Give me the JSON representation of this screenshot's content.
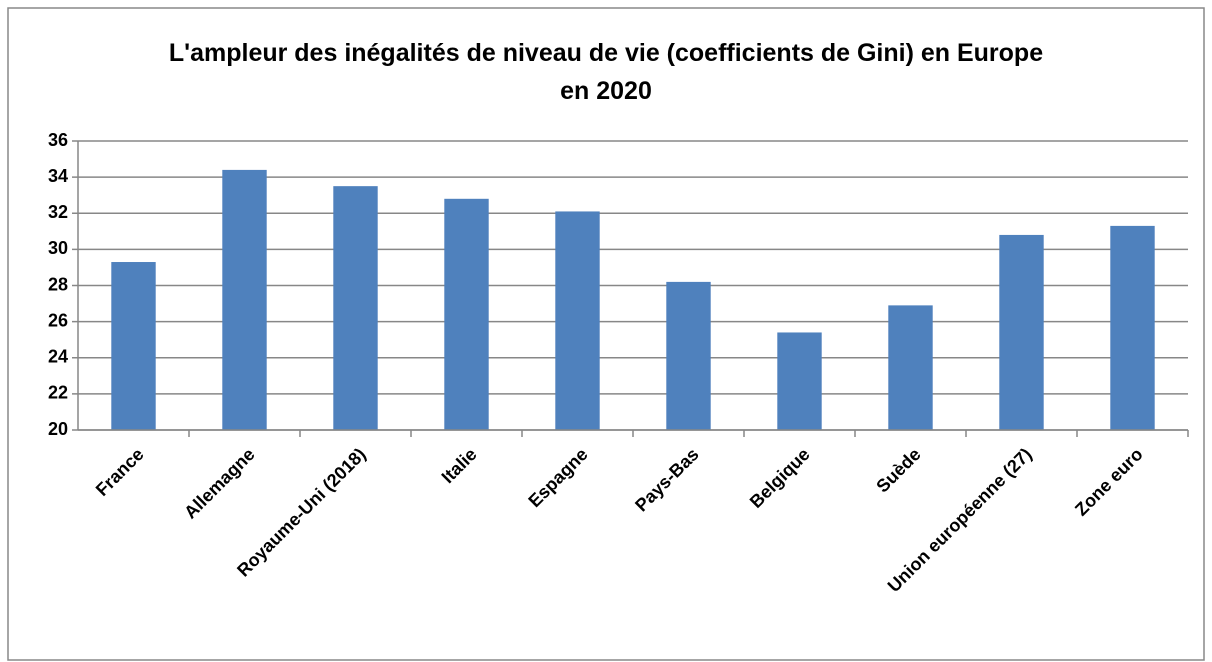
{
  "chart_data": {
    "type": "bar",
    "title": "L'ampleur des inégalités de niveau de vie (coefficients de Gini) en Europe en 2020",
    "categories": [
      "France",
      "Allemagne",
      "Royaume-Uni (2018)",
      "Italie",
      "Espagne",
      "Pays-Bas",
      "Belgique",
      "Suède",
      "Union européenne (27)",
      "Zone euro"
    ],
    "values": [
      29.3,
      34.4,
      33.5,
      32.8,
      32.1,
      28.2,
      25.4,
      26.9,
      30.8,
      31.3
    ],
    "color": "#4f81bd",
    "ylim": [
      20,
      36
    ],
    "yticks": [
      20,
      22,
      24,
      26,
      28,
      30,
      32,
      34,
      36
    ],
    "grid": true
  }
}
